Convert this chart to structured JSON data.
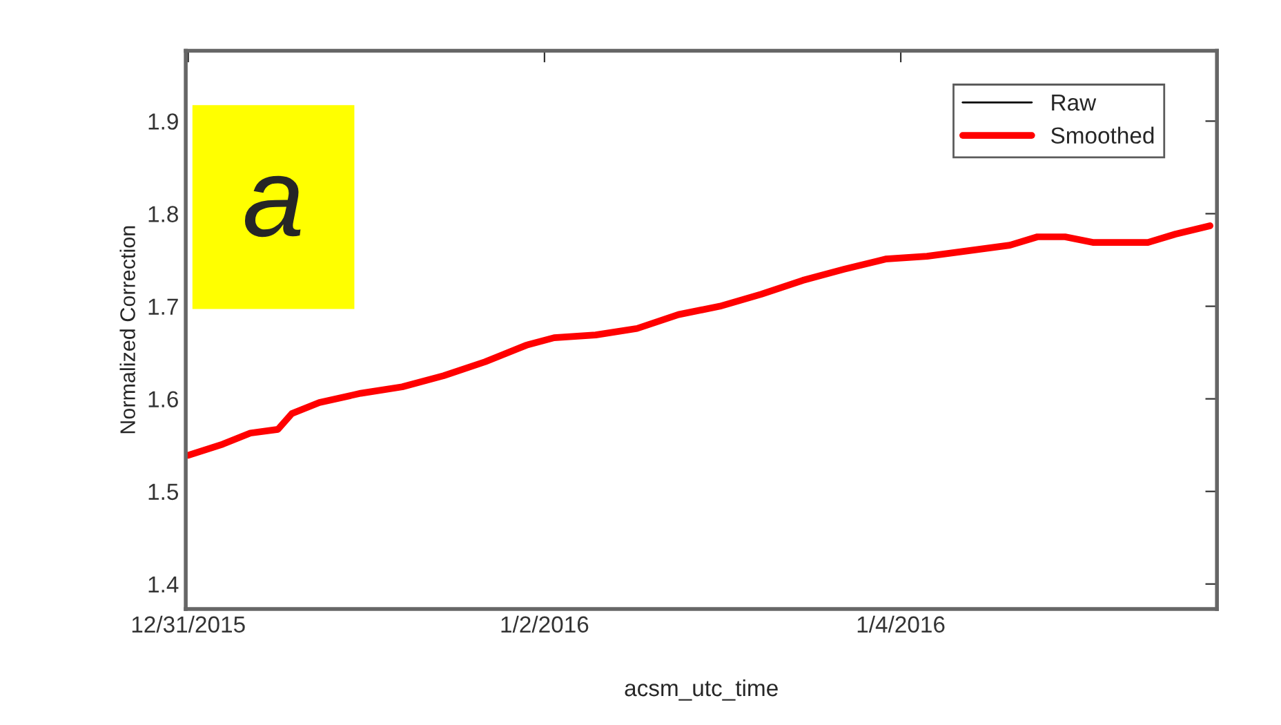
{
  "chart_data": {
    "type": "line",
    "xlabel": "acsm_utc_time",
    "ylabel": "Normalized Correction",
    "annotations": [
      "a"
    ],
    "xlim": [
      "2015-12-30T23:40",
      "2016-01-05T18:36"
    ],
    "ylim": [
      1.373,
      1.976
    ],
    "xticks": [
      {
        "value": "2015-12-31",
        "label": "12/31/2015"
      },
      {
        "value": "2016-01-02",
        "label": "1/2/2016"
      },
      {
        "value": "2016-01-04",
        "label": "1/4/2016"
      }
    ],
    "yticks": [
      1.4,
      1.5,
      1.6,
      1.7,
      1.8,
      1.9
    ],
    "legend": "top right",
    "grid": false,
    "marker": "none",
    "line_style": "solid",
    "x": [
      "2015-12-31T00:00",
      "2015-12-31T04:39",
      "2015-12-31T08:22",
      "2015-12-31T12:05",
      "2015-12-31T13:57",
      "2015-12-31T17:40",
      "2015-12-31T23:15",
      "2016-01-01T04:50",
      "2016-01-01T10:25",
      "2016-01-01T16:00",
      "2016-01-01T21:35",
      "2016-01-02T01:18",
      "2016-01-02T06:53",
      "2016-01-02T12:28",
      "2016-01-02T18:03",
      "2016-01-02T23:37",
      "2016-01-03T05:12",
      "2016-01-03T10:48",
      "2016-01-03T16:22",
      "2016-01-03T21:57",
      "2016-01-04T03:32",
      "2016-01-04T09:07",
      "2016-01-04T14:42",
      "2016-01-04T18:25",
      "2016-01-04T22:08",
      "2016-01-05T01:52",
      "2016-01-05T09:18",
      "2016-01-05T13:02",
      "2016-01-05T17:40"
    ],
    "series": [
      {
        "name": "Raw",
        "color": "#000000",
        "values": [
          null,
          null,
          null,
          null,
          null,
          null,
          null,
          null,
          null,
          null,
          null,
          null,
          null,
          null,
          null,
          null,
          null,
          null,
          null,
          null,
          null,
          null,
          null,
          null,
          null,
          null,
          null,
          null,
          null
        ]
      },
      {
        "name": "Smoothed",
        "color": "#ff0000",
        "values": [
          1.539,
          1.551,
          1.563,
          1.567,
          1.584,
          1.596,
          1.606,
          1.613,
          1.625,
          1.64,
          1.658,
          1.666,
          1.669,
          1.676,
          1.691,
          1.7,
          1.713,
          1.728,
          1.74,
          1.751,
          1.754,
          1.76,
          1.766,
          1.775,
          1.775,
          1.769,
          1.769,
          1.778,
          1.787
        ]
      }
    ]
  }
}
